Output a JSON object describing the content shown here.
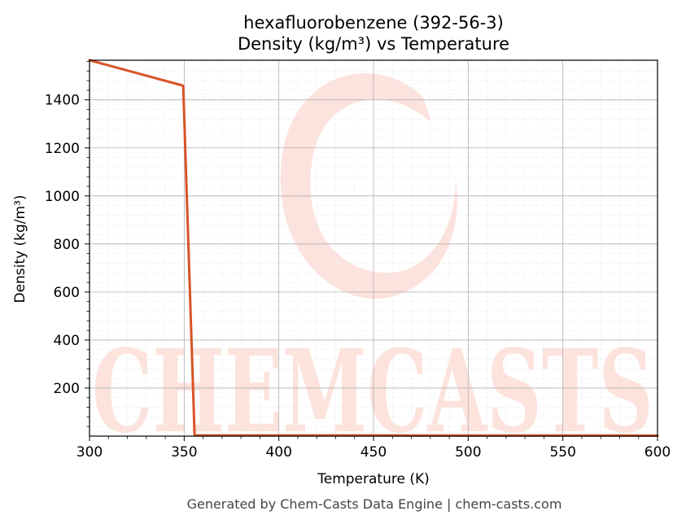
{
  "title": {
    "line1": "hexafluorobenzene (392-56-3)",
    "line2": "Density (kg/m³) vs Temperature"
  },
  "footer": "Generated by Chem-Casts Data Engine | chem-casts.com",
  "watermark": {
    "text": "CHEMCASTS",
    "color": "#fde0d9"
  },
  "colors": {
    "line": "#d95326",
    "grid_major": "#b0b0b0",
    "grid_minor": "#e6e6e6"
  },
  "chart_data": {
    "type": "line",
    "xlabel": "Temperature (K)",
    "ylabel": "Density (kg/m³)",
    "xlim": [
      300,
      600
    ],
    "ylim": [
      0,
      1565
    ],
    "xticks": [
      300,
      350,
      400,
      450,
      500,
      550,
      600
    ],
    "yticks": [
      200,
      400,
      600,
      800,
      1000,
      1200,
      1400
    ],
    "grid": true,
    "minor_grid": true,
    "series": [
      {
        "color": "#d95326",
        "x": [
          300,
          349,
          349.5,
          355.5,
          400,
          450,
          500,
          550,
          600
        ],
        "y": [
          1565,
          1460,
          1457,
          3,
          3,
          2.8,
          2.6,
          2.5,
          2.3
        ]
      }
    ]
  }
}
